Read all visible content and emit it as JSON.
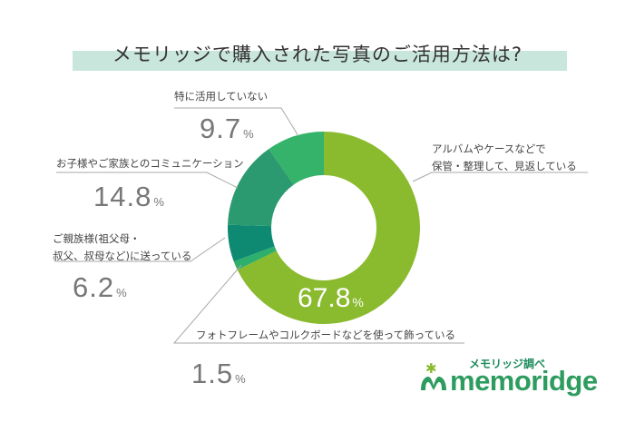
{
  "title": "メモリッジで購入された写真のご活用方法は?",
  "chart_data": {
    "type": "pie",
    "slices": [
      {
        "label": "アルバムやケースなどで保管・整理して、見返している",
        "label_lines": [
          "アルバムやケースなどで",
          "保管・整理して、見返している"
        ],
        "value": 67.8,
        "display": "67.8",
        "color": "#8aba2e"
      },
      {
        "label": "フォトフレームやコルクボードなどを使って飾っている",
        "label_lines": [
          "フォトフレームやコルクボードなどを使って飾っている"
        ],
        "value": 1.5,
        "display": "1.5",
        "color": "#2eaf6c"
      },
      {
        "label": "ご親族様(祖父母・叔父、叔母など)に送っている",
        "label_lines": [
          "ご親族様(祖父母・",
          "叔父、叔母など)に送っている"
        ],
        "value": 6.2,
        "display": "6.2",
        "color": "#0e8a73"
      },
      {
        "label": "お子様やご家族とのコミュニケーション",
        "label_lines": [
          "お子様やご家族とのコミュニケーション"
        ],
        "value": 14.8,
        "display": "14.8",
        "color": "#2c9a70"
      },
      {
        "label": "特に活用していない",
        "label_lines": [
          "特に活用していない"
        ],
        "value": 9.7,
        "display": "9.7",
        "color": "#35b36a"
      }
    ],
    "unit": "%"
  },
  "logo": {
    "subtitle": "メモリッジ調べ",
    "name": "memoridge"
  }
}
